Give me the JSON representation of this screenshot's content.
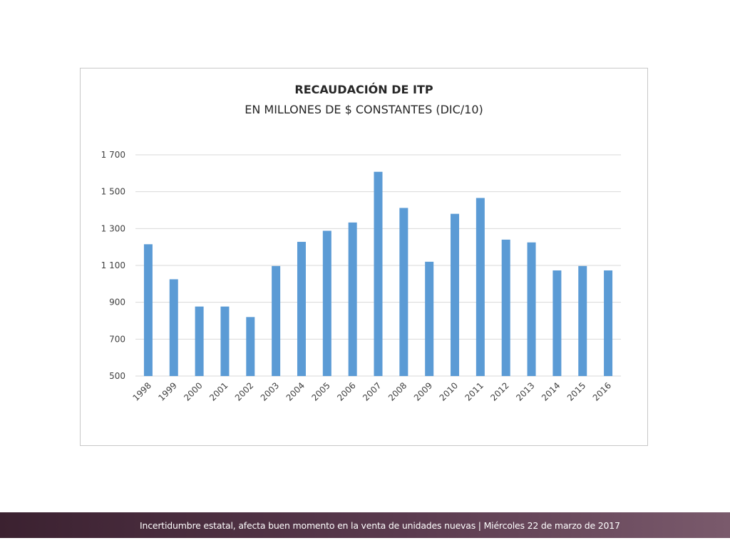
{
  "chart_data": {
    "type": "bar",
    "title": "RECAUDACIÓN DE ITP",
    "subtitle": "EN MILLONES DE $ CONSTANTES (DIC/10)",
    "categories": [
      "1998",
      "1999",
      "2000",
      "2001",
      "2002",
      "2003",
      "2004",
      "2005",
      "2006",
      "2007",
      "2008",
      "2009",
      "2010",
      "2011",
      "2012",
      "2013",
      "2014",
      "2015",
      "2016"
    ],
    "values": [
      1215,
      1025,
      877,
      877,
      820,
      1097,
      1228,
      1288,
      1333,
      1608,
      1412,
      1120,
      1380,
      1466,
      1240,
      1225,
      1073,
      1097,
      1073
    ],
    "yticks": [
      "500",
      "700",
      "900",
      "1 100",
      "1 300",
      "1 500",
      "1 700"
    ],
    "ylim": [
      500,
      1700
    ],
    "bar_color": "#5b9bd5",
    "grid": true
  },
  "footer": {
    "text": "Incertidumbre estatal, afecta buen momento en la venta de unidades nuevas | Miércoles 22 de marzo de 2017"
  }
}
